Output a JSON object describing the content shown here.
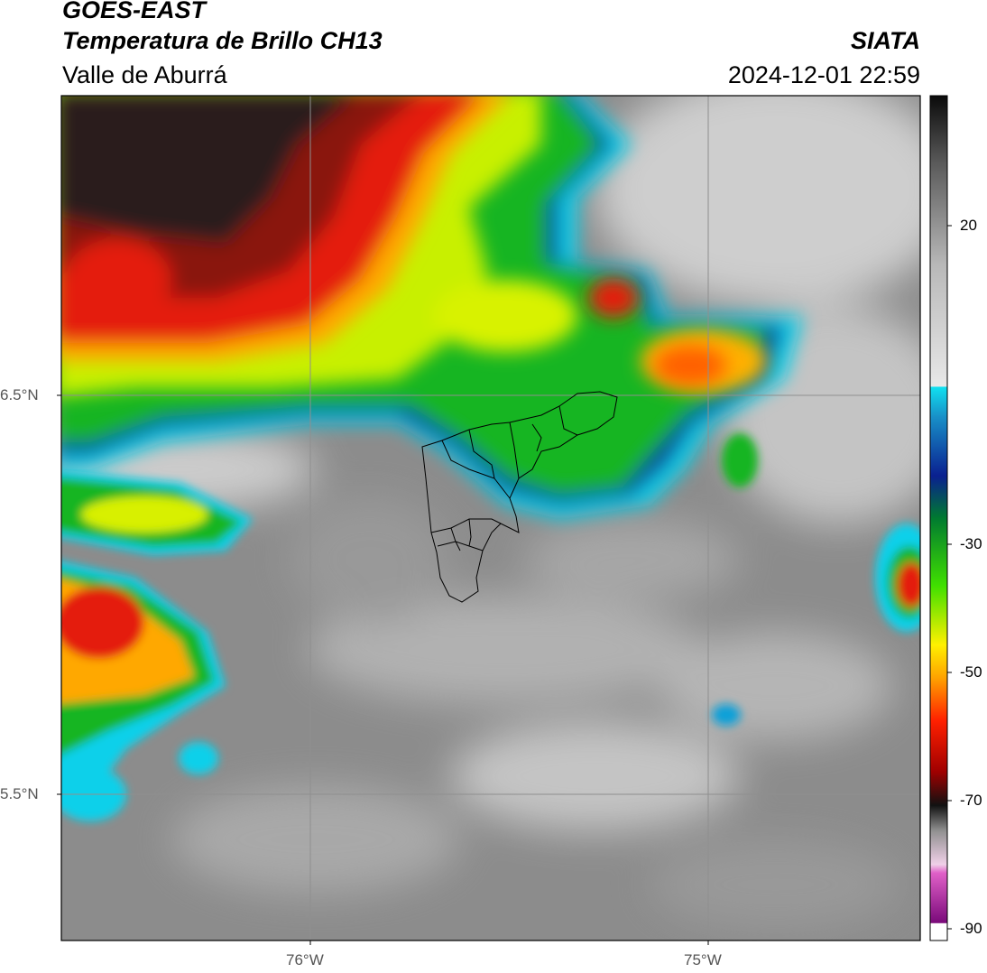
{
  "header": {
    "title": "GOES-EAST",
    "subtitle": "Temperatura de Brillo CH13",
    "region": "Valle de Aburrá",
    "brand": "SIATA",
    "timestamp": "2024-12-01 22:59"
  },
  "map": {
    "lat_labels": [
      "6.5°N",
      "5.5°N"
    ],
    "lon_labels": [
      "76°W",
      "75°W"
    ],
    "colors": {
      "background": "#8a8a8a",
      "warm_cloud": "#cfcfcf",
      "cold_red": "#e41a0a",
      "cold_dark": "#1b1b1b",
      "cold_green": "#12c81a",
      "cold_yellow": "#e6f000",
      "cold_blue": "#0a3aa0",
      "cold_cyan": "#14c8e6",
      "boundary": "#000000",
      "gridline": "#8f8f8f"
    }
  },
  "colorbar": {
    "ticks": [
      "20",
      "-30",
      "-50",
      "-70",
      "-90"
    ]
  }
}
